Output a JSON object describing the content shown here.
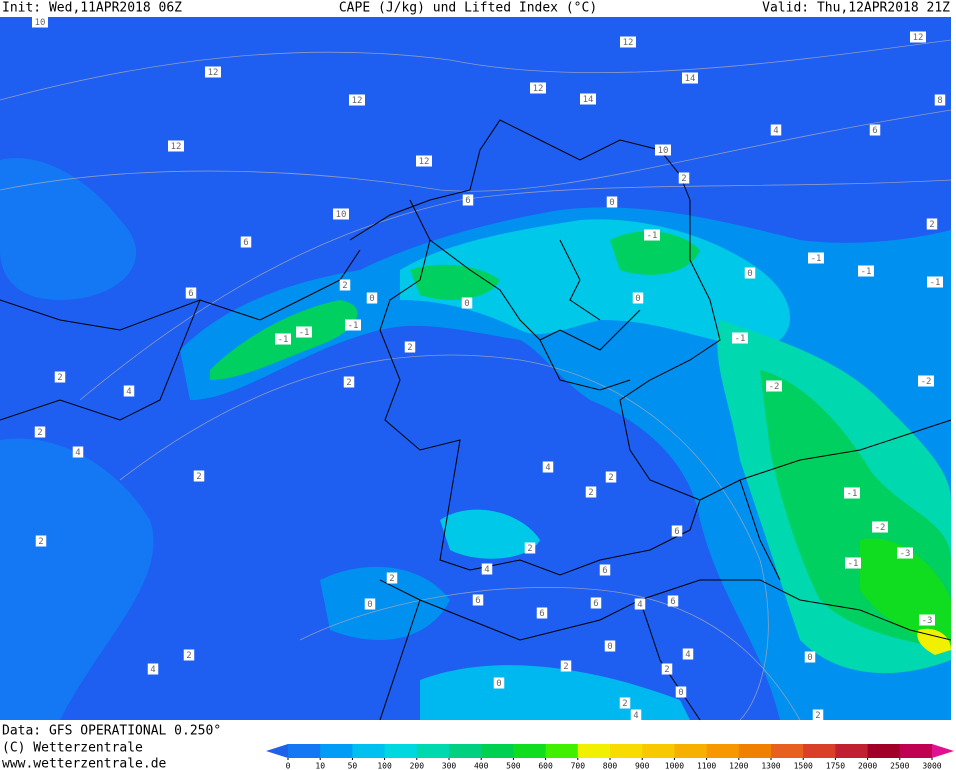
{
  "header": {
    "init": "Init: Wed,11APR2018 06Z",
    "title": "CAPE (J/kg) und Lifted Index (°C)",
    "valid": "Valid: Thu,12APR2018 21Z"
  },
  "footer": {
    "data": "Data: GFS OPERATIONAL 0.250°",
    "copyright": "(C) Wetterzentrale",
    "url": "www.wetterzentrale.de"
  },
  "colorbar": {
    "ticks": [
      0,
      10,
      50,
      100,
      200,
      300,
      400,
      500,
      600,
      700,
      800,
      900,
      1000,
      1100,
      1200,
      1300,
      1500,
      1750,
      2000,
      2500,
      3000
    ],
    "colors": [
      "#1f62ea",
      "#1478f5",
      "#009cf5",
      "#00c0f0",
      "#00d8e0",
      "#00d8b0",
      "#00d080",
      "#00d050",
      "#10dc20",
      "#40f000",
      "#f0f000",
      "#f8dc00",
      "#f8c800",
      "#f8b000",
      "#f89800",
      "#f08000",
      "#e86020",
      "#d84028",
      "#c02030",
      "#a00028",
      "#c00050",
      "#e01090"
    ]
  },
  "contour_labels": [
    "10",
    "12",
    "12",
    "12",
    "12",
    "12",
    "12",
    "14",
    "14",
    "12",
    "8",
    "4",
    "6",
    "10",
    "2",
    "10",
    "6",
    "6",
    "6",
    "2",
    "0",
    "0",
    "-1",
    "-1",
    "-1",
    "-1",
    "2",
    "0",
    "0",
    "0",
    "-1",
    "-1",
    "-1",
    "2",
    "2",
    "-1",
    "-2",
    "-2",
    "2",
    "4",
    "2",
    "4",
    "2",
    "4",
    "2",
    "2",
    "-1",
    "-2",
    "-3",
    "-1",
    "-3",
    "2",
    "6",
    "2",
    "2",
    "4",
    "6",
    "6",
    "6",
    "6",
    "4",
    "6",
    "0",
    "4",
    "2",
    "2",
    "0",
    "2",
    "4",
    "0",
    "0",
    "2",
    "4",
    "0",
    "2"
  ]
}
